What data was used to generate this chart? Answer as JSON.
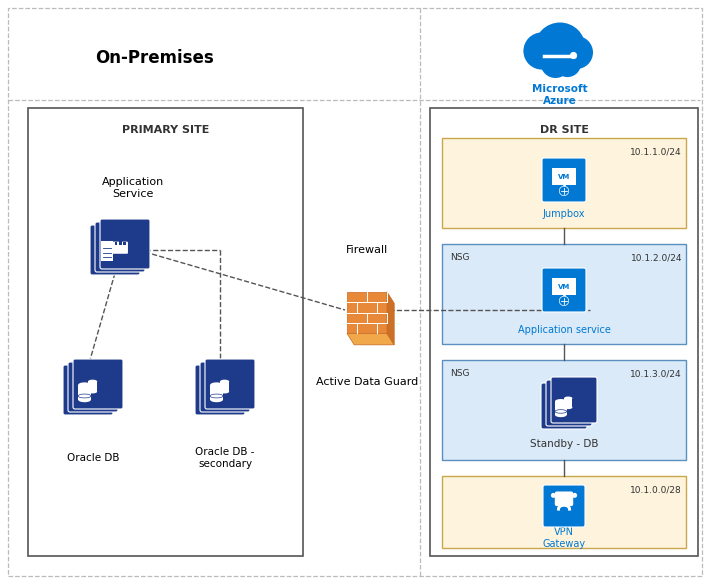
{
  "bg_color": "#ffffff",
  "title_onpremises": "On-Premises",
  "title_azure": "Microsoft\nAzure",
  "azure_text_color": "#0078d4",
  "primary_site_label": "PRIMARY SITE",
  "dr_site_label": "DR SITE",
  "jumpbox_subnet": "10.1.1.0/24",
  "app_subnet": "10.1.2.0/24",
  "db_subnet": "10.1.3.0/24",
  "vpn_subnet": "10.1.0.0/28",
  "jumpbox_label": "Jumpbox",
  "app_svc_label": "Application service",
  "standby_db_label": "Standby - DB",
  "vpn_gw_label": "VPN\nGateway",
  "nsg_label": "NSG",
  "firewall_label": "Firewall",
  "active_dg_label": "Active Data Guard",
  "app_service_label": "Application\nService",
  "oracle_db_label": "Oracle DB",
  "oracle_db2_label": "Oracle DB -\nsecondary",
  "dark_blue": "#1e3a8a",
  "azure_blue": "#0078d4",
  "light_blue_bg": "#daeaf8",
  "light_yellow_bg": "#fef3dc",
  "white": "#ffffff",
  "line_color": "#555555",
  "dashed_color": "#777777",
  "border_color": "#aaaaaa"
}
